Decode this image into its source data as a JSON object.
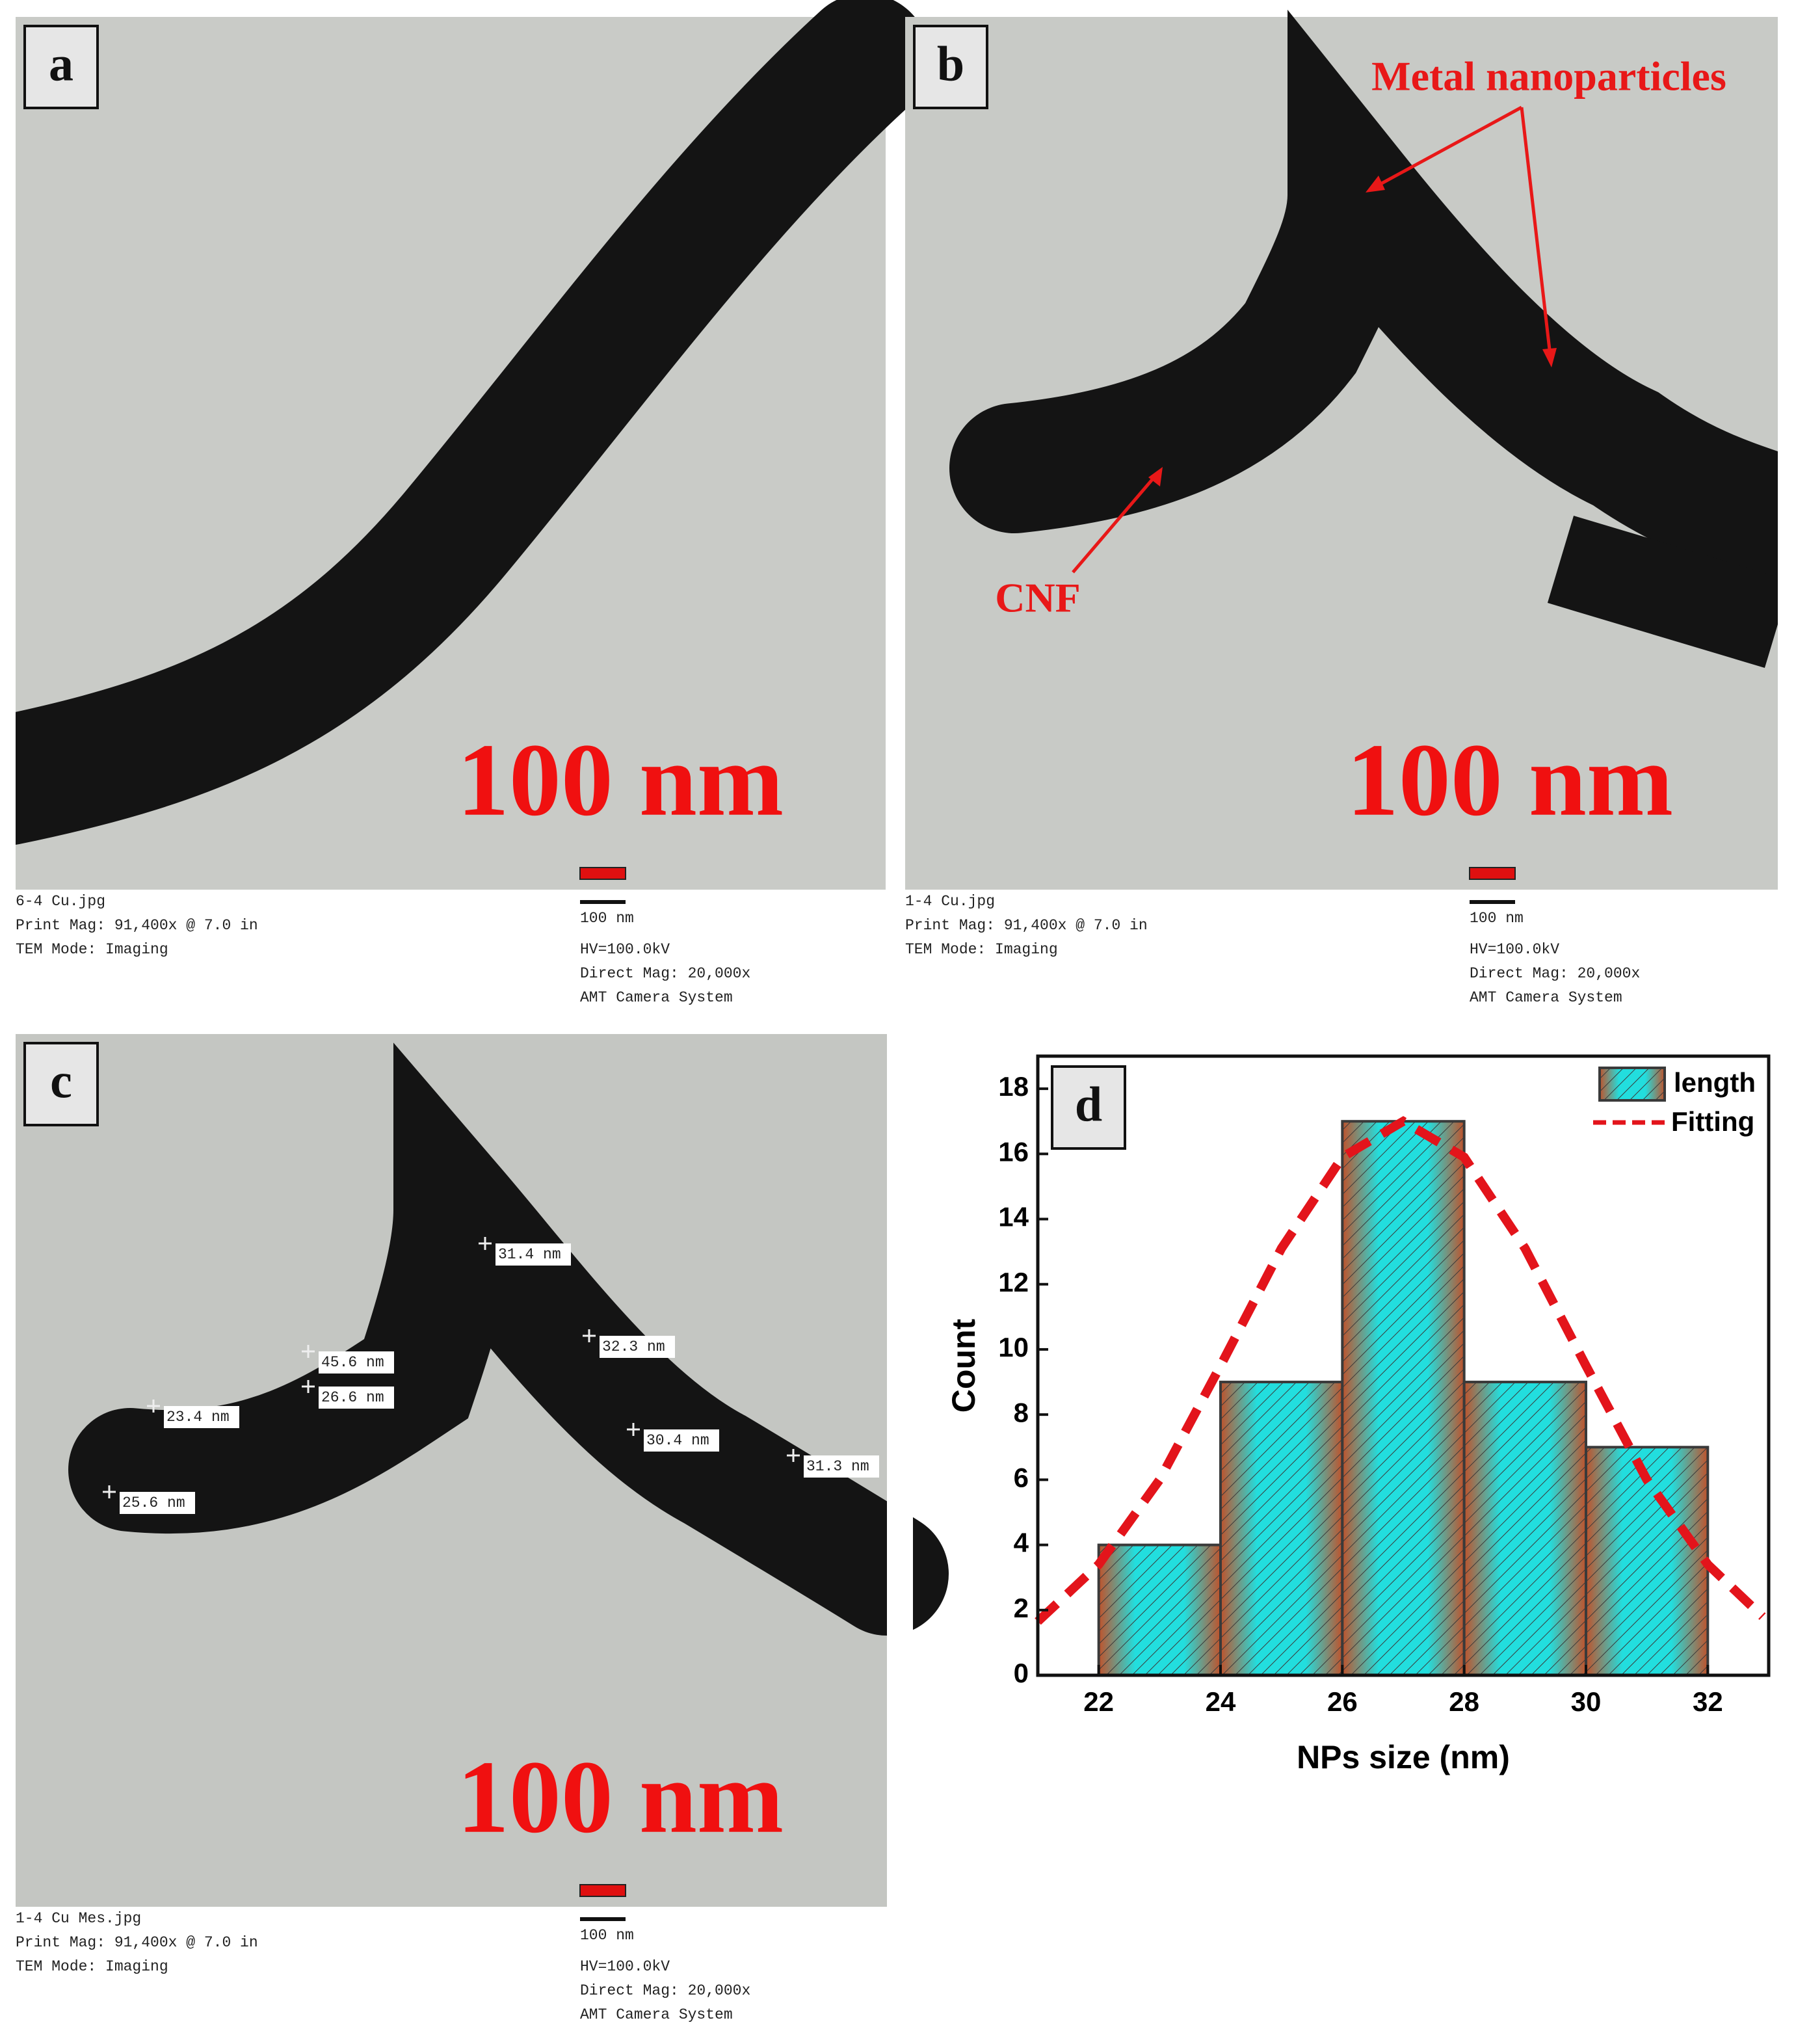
{
  "panels": [
    {
      "label": "a",
      "scale_text": "100 nm",
      "bar_label": "100 nm",
      "caption_left": [
        "6-4 Cu.jpg",
        "Print Mag:  91,400x @ 7.0 in",
        "TEM Mode: Imaging"
      ],
      "caption_right": [
        "HV=100.0kV",
        "Direct Mag: 20,000x",
        "AMT Camera System"
      ]
    },
    {
      "label": "b",
      "scale_text": "100 nm",
      "bar_label": "100 nm",
      "caption_left": [
        "1-4 Cu.jpg",
        "Print Mag:  91,400x @ 7.0 in",
        "TEM Mode: Imaging"
      ],
      "caption_right": [
        "HV=100.0kV",
        "Direct Mag: 20,000x",
        "AMT Camera System"
      ],
      "annotations": [
        "Metal nanoparticles",
        "CNF"
      ]
    },
    {
      "label": "c",
      "scale_text": "100 nm",
      "bar_label": "100 nm",
      "caption_left": [
        "1-4 Cu Mes.jpg",
        "Print Mag:  91,400x @ 7.0 in",
        "TEM Mode: Imaging"
      ],
      "caption_right": [
        "HV=100.0kV",
        "Direct Mag: 20,000x",
        "AMT Camera System"
      ],
      "measurements": [
        "31.4 nm",
        "32.3 nm",
        "45.6 nm",
        "26.6 nm",
        "23.4 nm",
        "30.4 nm",
        "31.3 nm",
        "25.6 nm"
      ]
    }
  ],
  "chart_data": {
    "type": "histogram",
    "panel_label": "d",
    "x_label": "NPs size (nm)",
    "y_label": "Count",
    "bins": [
      22,
      24,
      26,
      28,
      30,
      32
    ],
    "series": [
      {
        "name": "length",
        "color": "#22dede",
        "edge_color": "#c0522b",
        "values": [
          4,
          9,
          17,
          9,
          7
        ]
      },
      {
        "name": "Fitting",
        "color": "#e3141b",
        "style": "dashed",
        "x": [
          21,
          22,
          23,
          24,
          25,
          26,
          27,
          28,
          29,
          30,
          31,
          32,
          32.9
        ],
        "values": [
          1.65,
          3.4,
          6.0,
          9.5,
          13.1,
          15.9,
          17,
          15.9,
          13.1,
          9.5,
          6.0,
          3.4,
          1.8
        ]
      }
    ],
    "xlim": [
      21,
      33
    ],
    "ylim": [
      0,
      19
    ],
    "xticks": [
      22,
      24,
      26,
      28,
      30,
      32
    ],
    "yticks": [
      0,
      2,
      4,
      6,
      8,
      10,
      12,
      14,
      16,
      18
    ],
    "legend": "upper right"
  }
}
